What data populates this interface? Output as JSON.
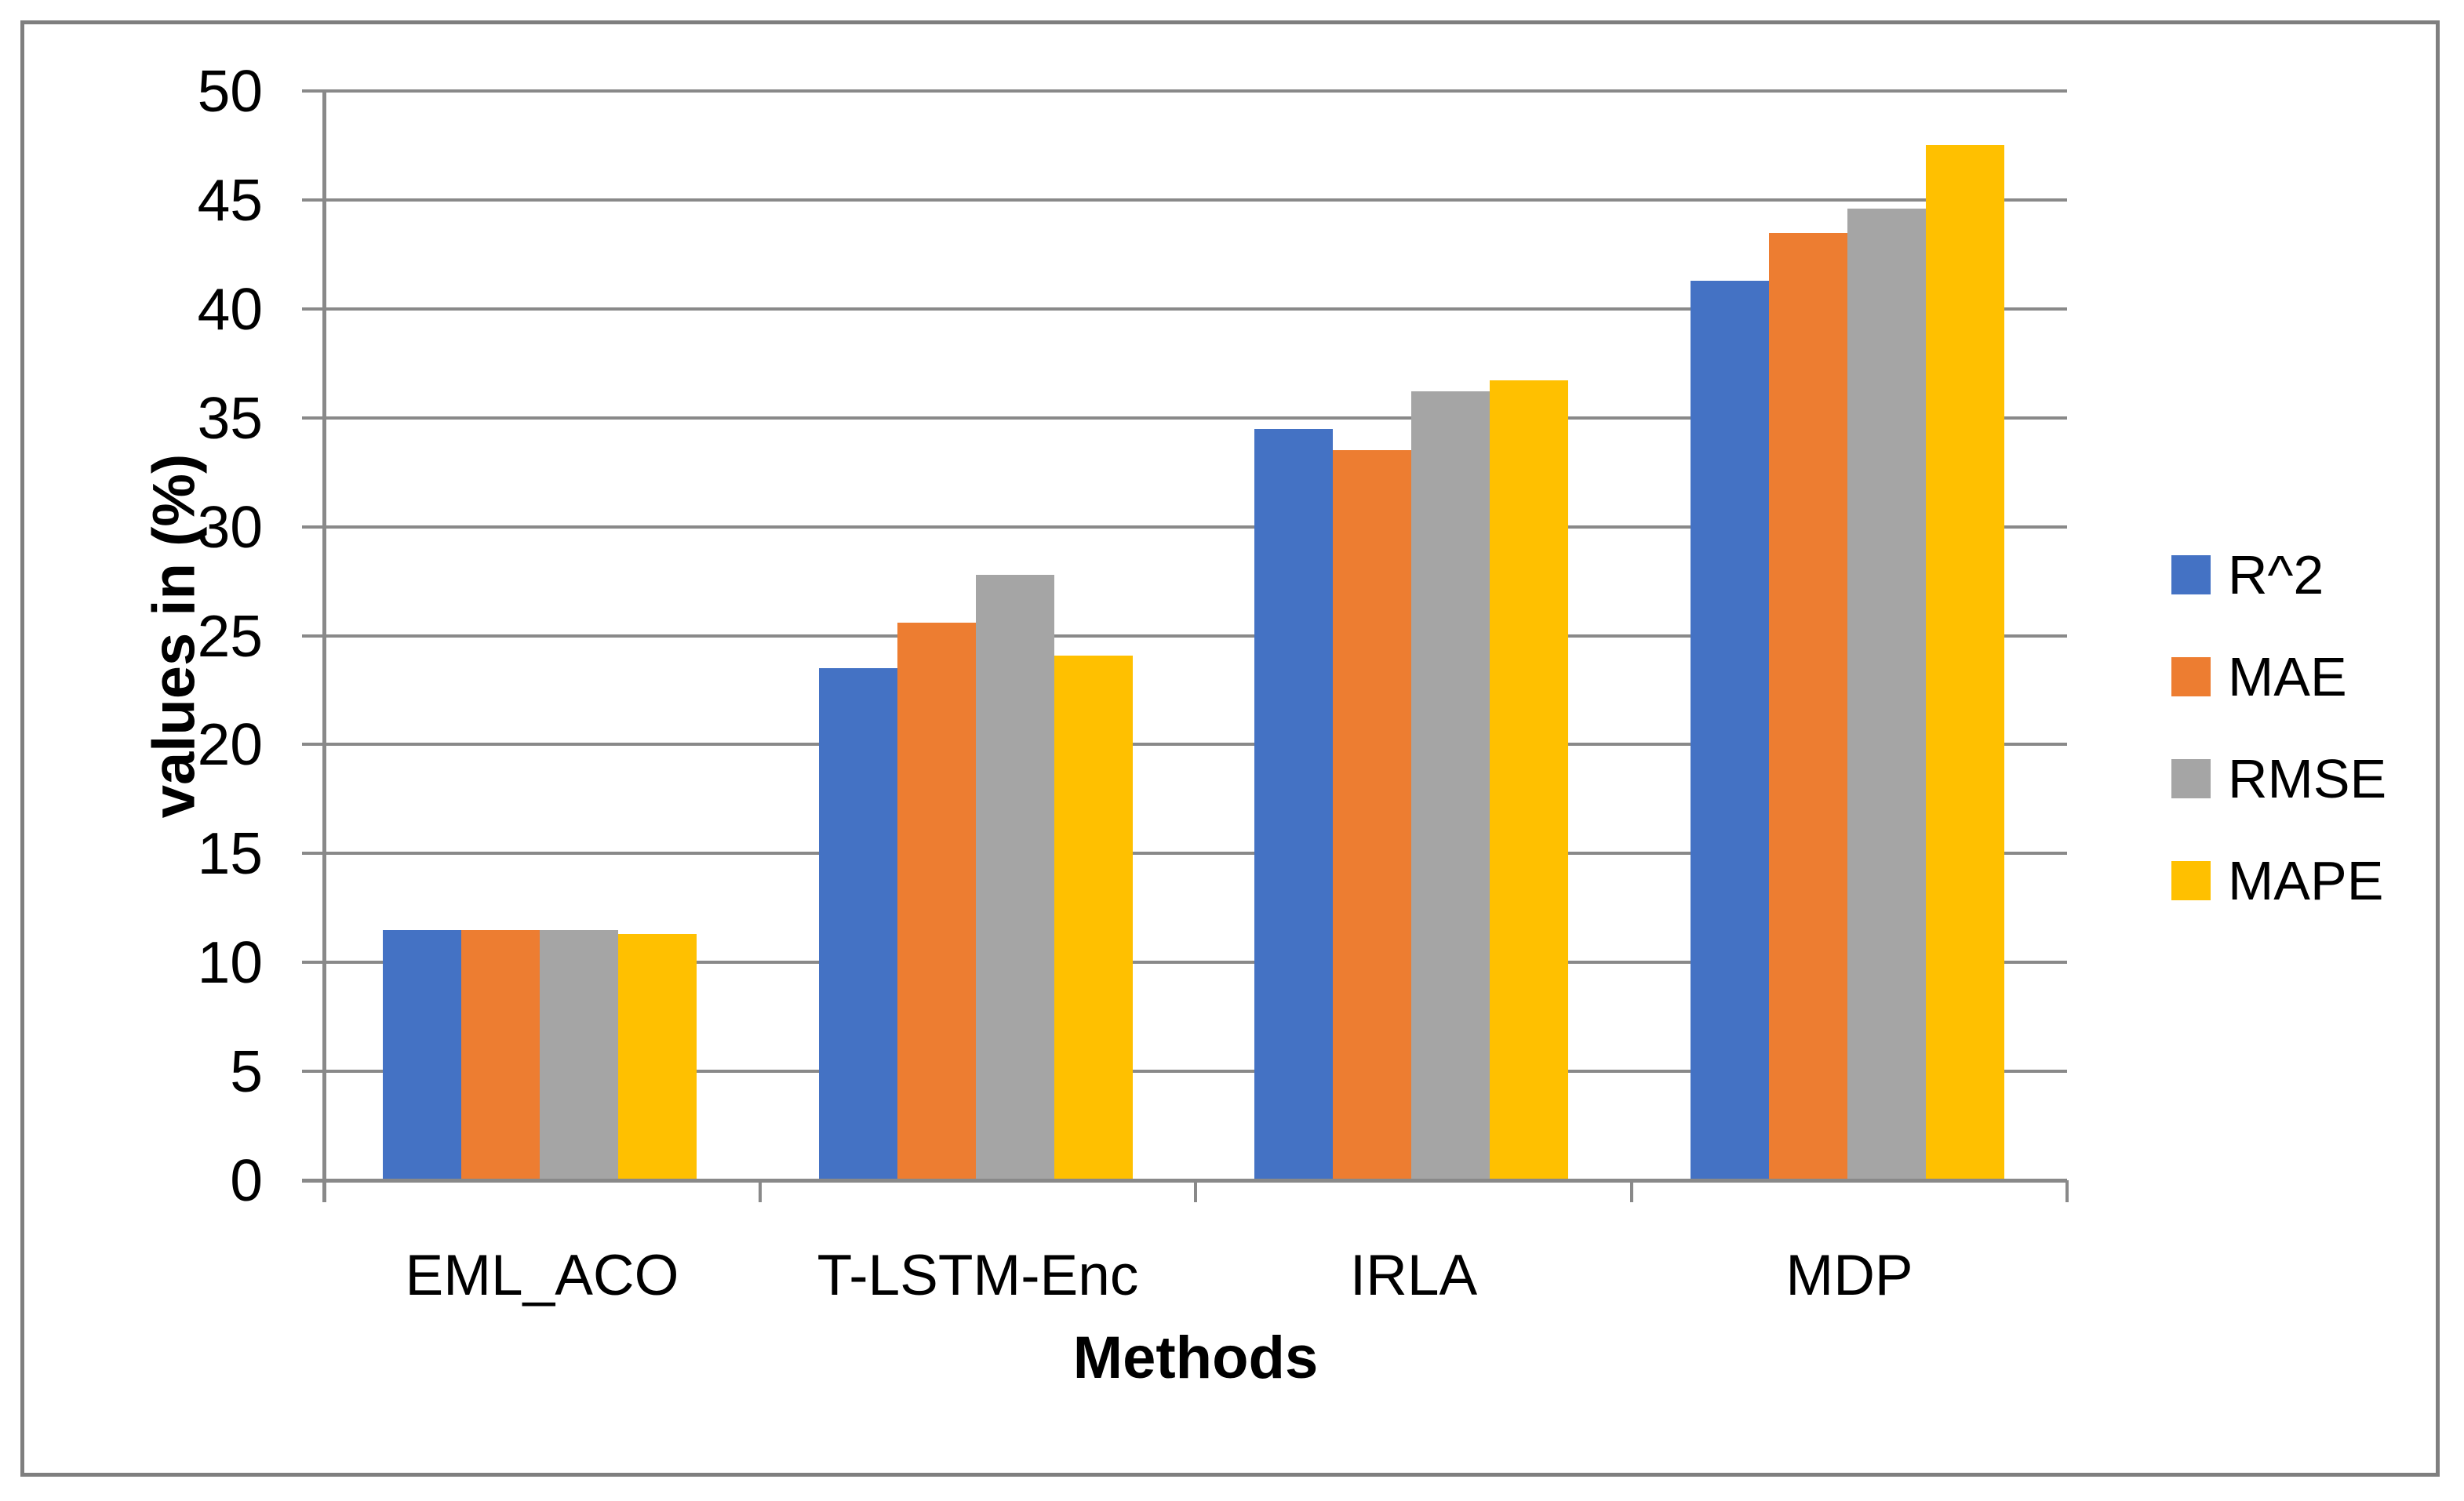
{
  "chart_data": {
    "type": "bar",
    "title": "",
    "categories": [
      "EML_ACO",
      "T-LSTM-Enc",
      "IRLA",
      "MDP"
    ],
    "series": [
      {
        "name": "R^2",
        "color": "#4472C4",
        "values": [
          11.5,
          23.5,
          34.5,
          41.3
        ]
      },
      {
        "name": "MAE",
        "color": "#ED7D31",
        "values": [
          11.5,
          25.6,
          33.5,
          43.5
        ]
      },
      {
        "name": "RMSE",
        "color": "#A5A5A5",
        "values": [
          11.5,
          27.8,
          36.2,
          44.6
        ]
      },
      {
        "name": "MAPE",
        "color": "#FFC000",
        "values": [
          11.3,
          24.1,
          36.7,
          47.5
        ]
      }
    ],
    "xlabel": "Methods",
    "ylabel": "values in (%)",
    "ylim": [
      0,
      50
    ],
    "yticks": [
      0,
      5,
      10,
      15,
      20,
      25,
      30,
      35,
      40,
      45,
      50
    ],
    "grid": true,
    "legend_position": "right",
    "colors": {
      "gridline": "#898989",
      "axis": "#898989",
      "figure_border": "#7F7F7F",
      "background": "#FFFFFF",
      "text": "#000000"
    }
  }
}
